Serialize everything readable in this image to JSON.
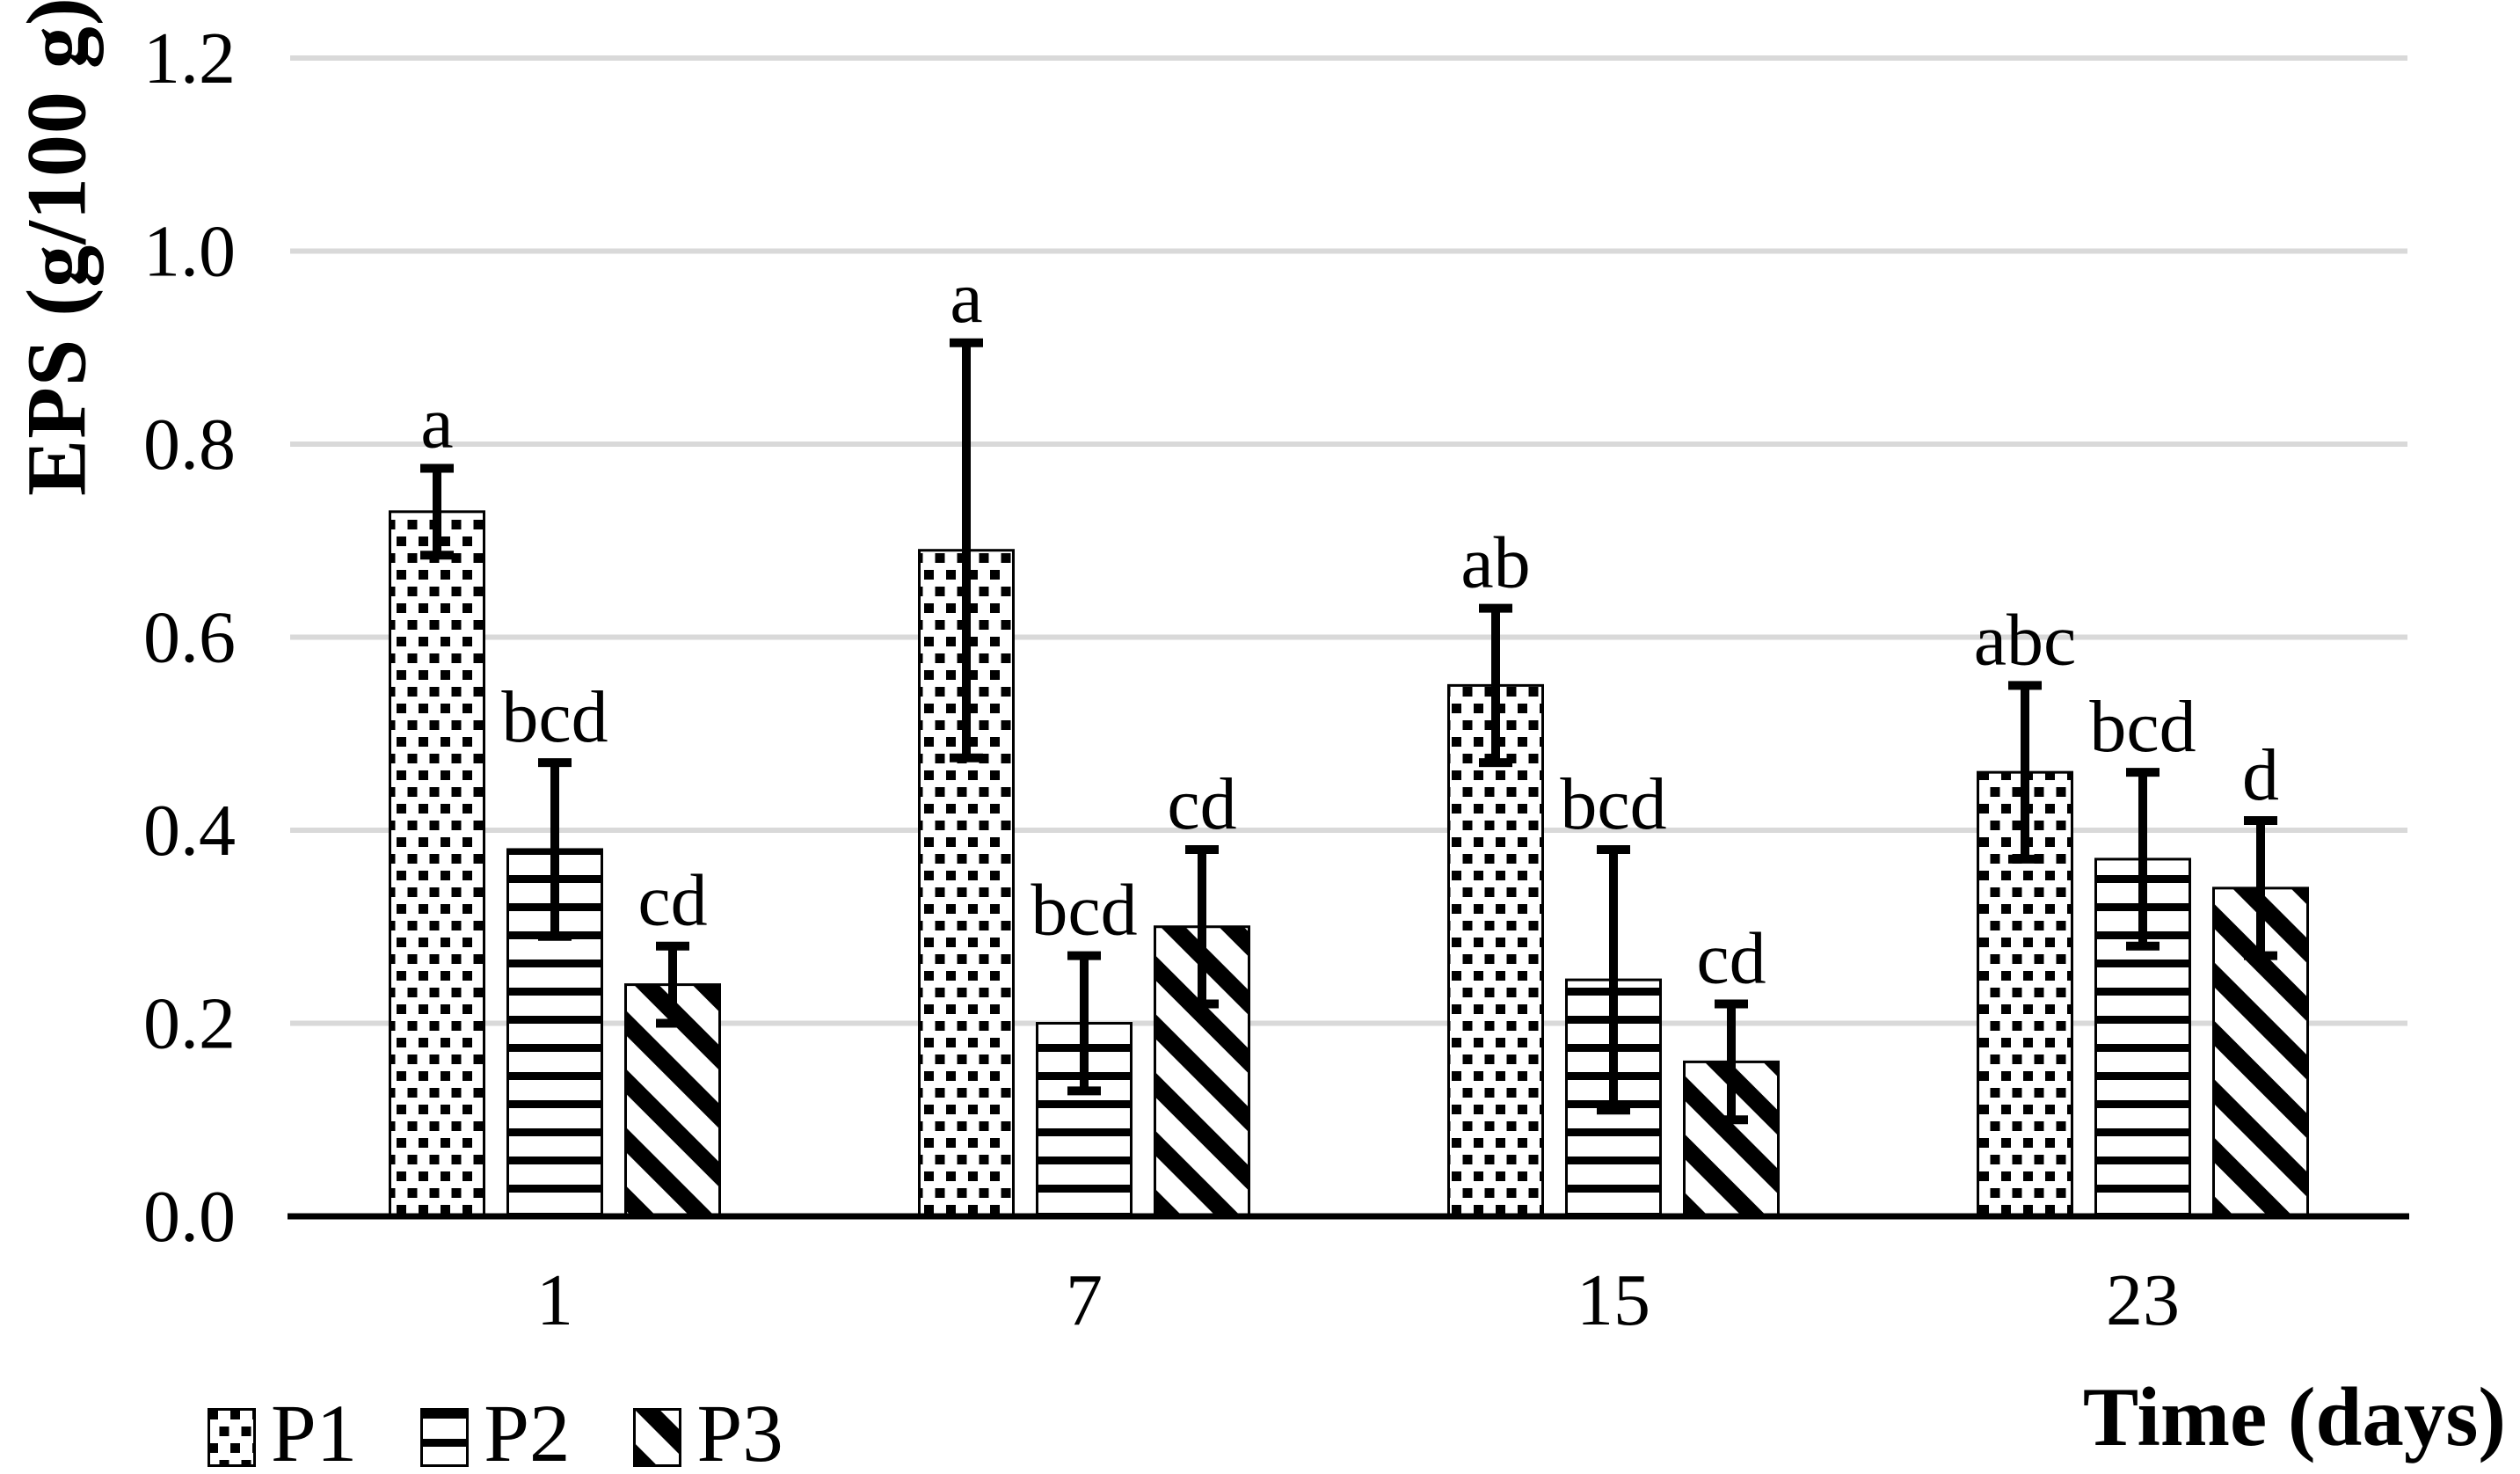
{
  "chart_data": {
    "type": "bar",
    "title": "",
    "xlabel": "Time (days)",
    "ylabel": "EPS (g/100 g)",
    "categories": [
      "1",
      "7",
      "15",
      "23"
    ],
    "ylim": [
      0,
      1.2
    ],
    "y_ticks": [
      "0.0",
      "0.2",
      "0.4",
      "0.6",
      "0.8",
      "1.0",
      "1.2"
    ],
    "grid": "horizontal",
    "legend_position": "bottom-left",
    "colors": {
      "bar_fill": "#ffffff",
      "bar_outline": "#000000",
      "gridline": "#d9d9d9",
      "axis": "#000000",
      "text": "#000000"
    },
    "series": [
      {
        "name": "P1",
        "pattern": "dots",
        "values": [
          0.73,
          0.69,
          0.55,
          0.46
        ],
        "error": [
          0.045,
          0.215,
          0.08,
          0.09
        ],
        "sig_labels": [
          "a",
          "a",
          "ab",
          "abc"
        ]
      },
      {
        "name": "P2",
        "pattern": "horizontal-lines",
        "values": [
          0.38,
          0.2,
          0.245,
          0.37
        ],
        "error": [
          0.09,
          0.07,
          0.135,
          0.09
        ],
        "sig_labels": [
          "bcd",
          "bcd",
          "bcd",
          "bcd"
        ]
      },
      {
        "name": "P3",
        "pattern": "diagonal-stripes",
        "values": [
          0.24,
          0.3,
          0.16,
          0.34
        ],
        "error": [
          0.04,
          0.08,
          0.06,
          0.07
        ],
        "sig_labels": [
          "cd",
          "cd",
          "cd",
          "d"
        ]
      }
    ]
  }
}
